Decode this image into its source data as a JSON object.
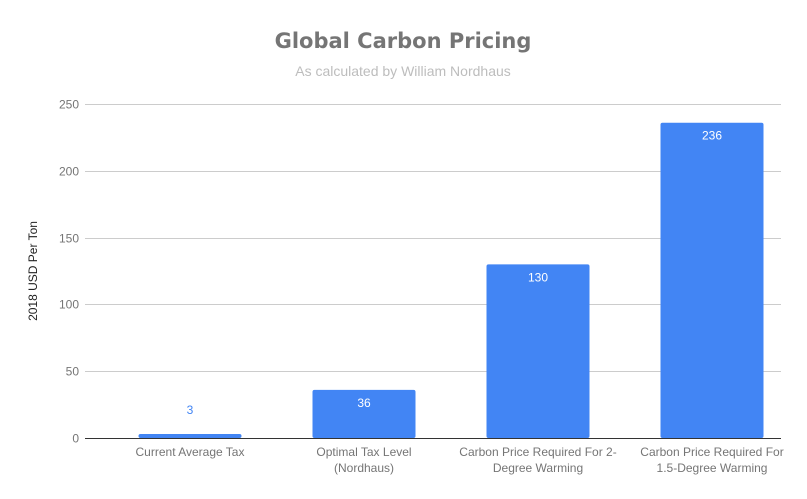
{
  "chart_data": {
    "type": "bar",
    "title": "Global Carbon Pricing",
    "subtitle": "As calculated by William Nordhaus",
    "xlabel": "",
    "ylabel": "2018 USD Per Ton",
    "ylim": [
      0,
      250
    ],
    "yticks": [
      0,
      50,
      100,
      150,
      200,
      250
    ],
    "ytick_labels": [
      "0",
      "50",
      "100",
      "150",
      "200",
      "250"
    ],
    "grid": true,
    "legend": "none",
    "categories": [
      [
        "Current Average Tax"
      ],
      [
        "Optimal Tax Level",
        "(Nordhaus)"
      ],
      [
        "Carbon Price Required For 2-",
        "Degree Warming"
      ],
      [
        "Carbon Price Required For",
        "1.5-Degree Warming"
      ]
    ],
    "values": [
      3,
      36,
      130,
      236
    ],
    "data_labels": [
      "3",
      "36",
      "130",
      "236"
    ],
    "colors": {
      "bar": "#4285f4",
      "label_inside": "#ffffff",
      "label_outside": "#4285f4",
      "grid": "#cccccc",
      "axis": "#333333"
    }
  }
}
